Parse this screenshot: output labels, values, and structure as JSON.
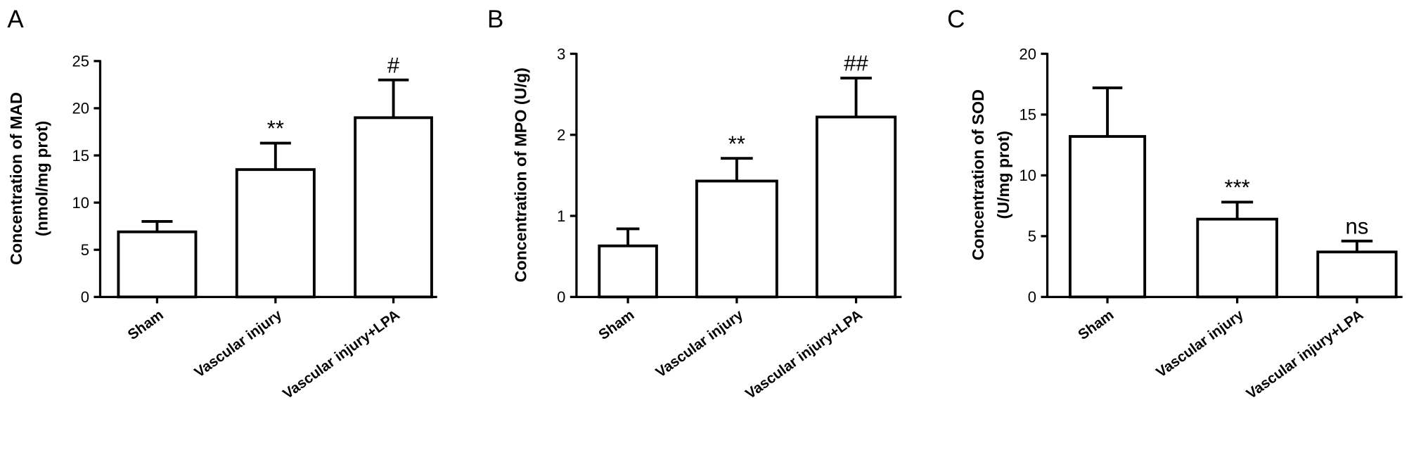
{
  "chart_data": [
    {
      "type": "bar",
      "panel_label": "A",
      "y_label": [
        "Concentration of MAD",
        "(nmol/mg prot)"
      ],
      "categories": [
        "Sham",
        "Vascular injury",
        "Vascular injury+LPA"
      ],
      "values": [
        6.9,
        13.5,
        19.0
      ],
      "errors": [
        1.1,
        2.8,
        4.0
      ],
      "annotations": [
        null,
        "**",
        "#"
      ],
      "ylim": [
        0,
        25
      ],
      "yticks": [
        0,
        5,
        10,
        15,
        20,
        25
      ],
      "color": "#ffffff",
      "grid": false
    },
    {
      "type": "bar",
      "panel_label": "B",
      "y_label": [
        "Concentration of MPO (U/g)"
      ],
      "categories": [
        "Sham",
        "Vascular injury",
        "Vascular injury+LPA"
      ],
      "values": [
        0.63,
        1.43,
        2.22
      ],
      "errors": [
        0.21,
        0.28,
        0.48
      ],
      "annotations": [
        null,
        "**",
        "##"
      ],
      "ylim": [
        0,
        3
      ],
      "yticks": [
        0,
        1,
        2,
        3
      ],
      "color": "#ffffff",
      "grid": false
    },
    {
      "type": "bar",
      "panel_label": "C",
      "y_label": [
        "Concentration of SOD",
        "(U/mg prot)"
      ],
      "categories": [
        "Sham",
        "Vascular injury",
        "Vascular injury+LPA"
      ],
      "values": [
        13.2,
        6.4,
        3.7
      ],
      "errors": [
        4.0,
        1.4,
        0.9
      ],
      "annotations": [
        null,
        "***",
        "ns"
      ],
      "ylim": [
        0,
        20
      ],
      "yticks": [
        0,
        5,
        10,
        15,
        20
      ],
      "color": "#ffffff",
      "grid": false
    }
  ]
}
